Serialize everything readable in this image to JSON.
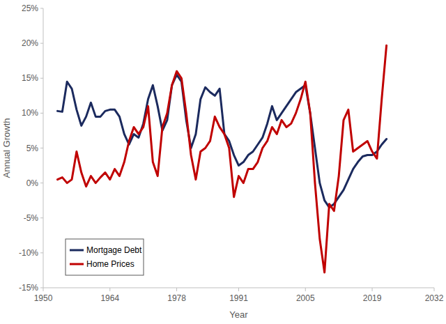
{
  "chart_data": {
    "type": "line",
    "x_label": "Year",
    "y_label": "Annual Growth",
    "x": [
      1953,
      1954,
      1955,
      1956,
      1957,
      1958,
      1959,
      1960,
      1961,
      1962,
      1963,
      1964,
      1965,
      1966,
      1967,
      1968,
      1969,
      1970,
      1971,
      1972,
      1973,
      1974,
      1975,
      1976,
      1977,
      1978,
      1979,
      1980,
      1981,
      1982,
      1983,
      1984,
      1985,
      1986,
      1987,
      1988,
      1989,
      1990,
      1991,
      1992,
      1993,
      1994,
      1995,
      1996,
      1997,
      1998,
      1999,
      2000,
      2001,
      2002,
      2003,
      2004,
      2005,
      2006,
      2007,
      2008,
      2009,
      2010,
      2011,
      2012,
      2013,
      2014,
      2015,
      2016,
      2017,
      2018,
      2019,
      2020,
      2021,
      2022
    ],
    "series": [
      {
        "name": "Mortgage Debt",
        "color": "#1b2a5e",
        "values": [
          10.3,
          10.2,
          14.5,
          13.5,
          10.5,
          8.2,
          9.5,
          11.5,
          9.5,
          9.5,
          10.3,
          10.5,
          10.5,
          9.5,
          7,
          5.5,
          7,
          6.5,
          8.5,
          12,
          14,
          11,
          7.5,
          9,
          14,
          15.5,
          14.5,
          9,
          5,
          7,
          12,
          13.7,
          13,
          12.5,
          13.5,
          7,
          6,
          4,
          2.5,
          3,
          4,
          4.5,
          5.5,
          6.5,
          8.5,
          11,
          9,
          10,
          11,
          12,
          13,
          13.5,
          14,
          10,
          5,
          0,
          -2.5,
          -3.5,
          -3,
          -2,
          -1,
          0.5,
          2,
          3,
          3.8,
          4,
          4,
          4.5,
          5.5,
          6.3
        ]
      },
      {
        "name": "Home Prices",
        "color": "#c00000",
        "values": [
          0.5,
          0.8,
          0,
          0.5,
          4.5,
          1.5,
          -0.5,
          1,
          0,
          0.8,
          1.5,
          0.5,
          2,
          1,
          3,
          6,
          8,
          7,
          8,
          11,
          3,
          1,
          8,
          10,
          14,
          16,
          15,
          10,
          4,
          0.5,
          4.5,
          5,
          6,
          9.5,
          8,
          7,
          5,
          -2,
          1,
          0,
          2,
          2,
          3,
          5,
          6,
          8,
          7,
          9,
          8,
          8.5,
          10,
          12,
          14.5,
          10,
          0,
          -8,
          -12.8,
          -3,
          -4,
          1,
          9,
          10.5,
          4.5,
          5,
          5.5,
          6,
          4.5,
          3.5,
          12,
          19.7
        ]
      }
    ],
    "xlim": [
      1950,
      2032
    ],
    "xticks": [
      1950,
      1964,
      1978,
      1991,
      2005,
      2019,
      2032
    ],
    "ylim": [
      -15,
      25
    ],
    "yticks": [
      {
        "value": -15,
        "label": "-15%"
      },
      {
        "value": -10,
        "label": "-10%"
      },
      {
        "value": -5,
        "label": "-5%"
      },
      {
        "value": 0,
        "label": "0%"
      },
      {
        "value": 5,
        "label": "5%"
      },
      {
        "value": 10,
        "label": "10%"
      },
      {
        "value": 15,
        "label": "15%"
      },
      {
        "value": 20,
        "label": "20%"
      },
      {
        "value": 25,
        "label": "25%"
      }
    ],
    "grid": false,
    "legend": "bottom-left"
  }
}
